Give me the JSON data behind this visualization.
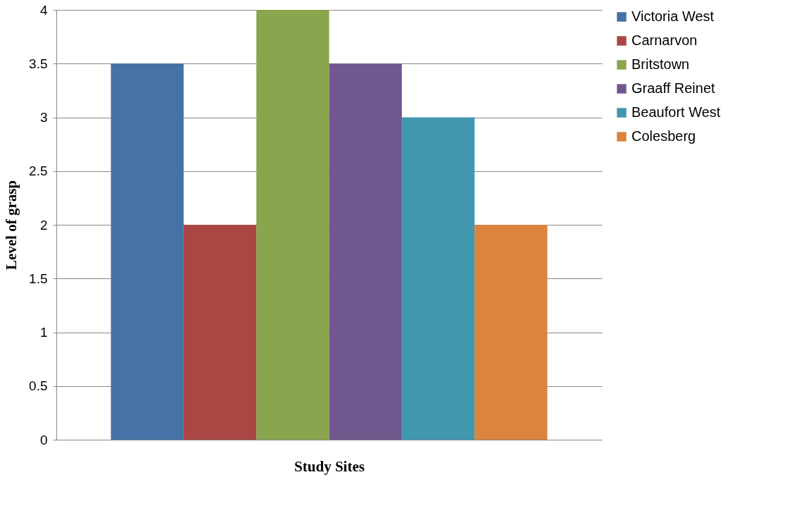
{
  "chart_data": {
    "type": "bar",
    "xlabel": "Study Sites",
    "ylabel": "Level of grasp",
    "categories": [
      null
    ],
    "series": [
      {
        "name": "Victoria West",
        "color": "#4572a7",
        "values": [
          3.5
        ]
      },
      {
        "name": "Carnarvon",
        "color": "#aa4643",
        "values": [
          2
        ]
      },
      {
        "name": "Britstown",
        "color": "#89a54e",
        "values": [
          4
        ]
      },
      {
        "name": "Graaff Reinet",
        "color": "#71588f",
        "values": [
          3.5
        ]
      },
      {
        "name": "Beaufort West",
        "color": "#4198af",
        "values": [
          3
        ]
      },
      {
        "name": "Colesberg",
        "color": "#db843d",
        "values": [
          2
        ]
      }
    ],
    "ylim": [
      0,
      4
    ],
    "yticks": [
      0,
      0.5,
      1,
      1.5,
      2,
      2.5,
      3,
      3.5,
      4
    ],
    "grid": "y",
    "legend": "right"
  }
}
